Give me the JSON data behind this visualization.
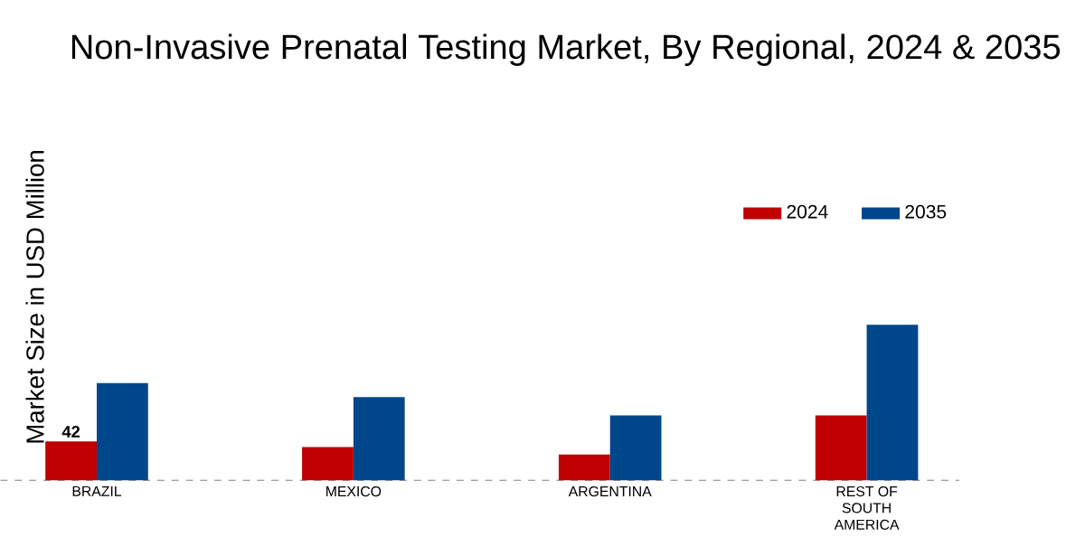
{
  "chart_data": {
    "type": "bar",
    "title": "Non-Invasive Prenatal Testing Market, By Regional, 2024 & 2035",
    "ylabel": "Market Size in USD Million",
    "categories": [
      "BRAZIL",
      "MEXICO",
      "ARGENTINA",
      "REST OF SOUTH AMERICA"
    ],
    "series": [
      {
        "name": "2024",
        "color": "#c00000",
        "values": [
          42,
          36,
          28,
          70
        ],
        "value_labels": [
          "42",
          null,
          null,
          null
        ]
      },
      {
        "name": "2035",
        "color": "#00468b",
        "values": [
          105,
          90,
          70,
          168
        ]
      }
    ],
    "legend": "top right"
  }
}
